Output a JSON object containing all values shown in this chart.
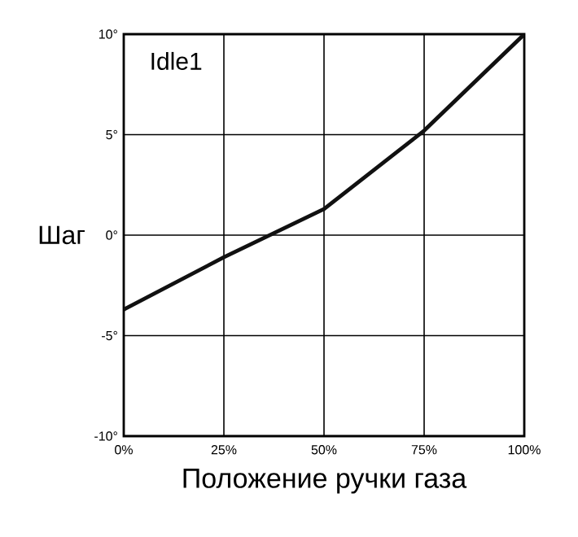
{
  "chart_data": {
    "type": "line",
    "xlabel": "Положение ручки газа",
    "ylabel": "Шаг",
    "annotations": [
      "Idle1"
    ],
    "x": [
      0,
      25,
      50,
      75,
      100
    ],
    "series": [
      {
        "color": "#111111",
        "values": [
          -3.7,
          -1.1,
          1.3,
          5.2,
          10
        ]
      }
    ],
    "xlim": [
      0,
      100
    ],
    "ylim": [
      -10,
      10
    ],
    "xticks": [
      {
        "value": 0,
        "label": "0%"
      },
      {
        "value": 25,
        "label": "25%"
      },
      {
        "value": 50,
        "label": "50%"
      },
      {
        "value": 75,
        "label": "75%"
      },
      {
        "value": 100,
        "label": "100%"
      }
    ],
    "yticks": [
      {
        "value": -10,
        "label": "-10°"
      },
      {
        "value": -5,
        "label": "-5°"
      },
      {
        "value": 0,
        "label": "0°"
      },
      {
        "value": 5,
        "label": "5°"
      },
      {
        "value": 10,
        "label": "10°"
      }
    ],
    "grid": true,
    "marker": "none",
    "line_style": "solid"
  }
}
